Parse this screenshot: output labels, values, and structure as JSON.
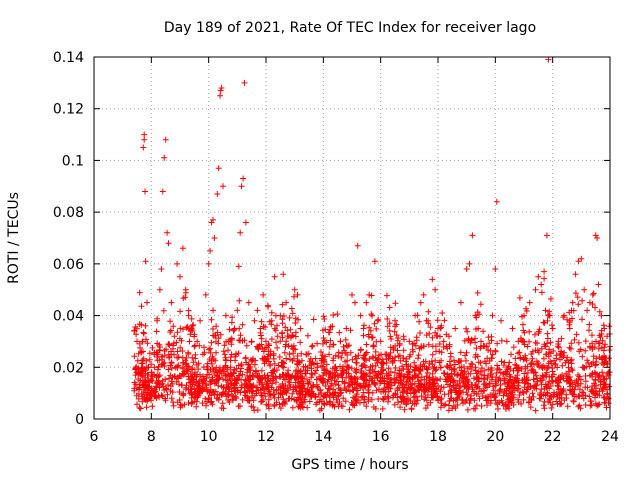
{
  "chart_data": {
    "type": "scatter",
    "title": "Day 189 of 2021, Rate Of TEC Index for receiver lago",
    "xlabel": "GPS time / hours",
    "ylabel": "ROTI / TECUs",
    "xlim": [
      6,
      24
    ],
    "ylim": [
      0,
      0.14
    ],
    "xticks": [
      6,
      8,
      10,
      12,
      14,
      16,
      18,
      20,
      22,
      24
    ],
    "yticks": [
      0,
      0.02,
      0.04,
      0.06,
      0.08,
      0.1,
      0.12,
      0.14
    ],
    "xtick_labels": [
      "6",
      "8",
      "10",
      "12",
      "14",
      "16",
      "18",
      "20",
      "22",
      "24"
    ],
    "ytick_labels": [
      "0",
      "0.02",
      "0.04",
      "0.06",
      "0.08",
      "0.1",
      "0.12",
      "0.14"
    ],
    "grid": true,
    "marker": "+",
    "series": [
      {
        "name": "ROTI",
        "color": "#ff0000",
        "points": [
          [
            7.5,
            0.012
          ],
          [
            7.6,
            0.018
          ],
          [
            7.65,
            0.026
          ],
          [
            7.7,
            0.03
          ],
          [
            7.75,
            0.11
          ],
          [
            7.75,
            0.108
          ],
          [
            7.72,
            0.105
          ],
          [
            7.78,
            0.088
          ],
          [
            7.8,
            0.061
          ],
          [
            7.85,
            0.045
          ],
          [
            7.9,
            0.02
          ],
          [
            8.0,
            0.015
          ],
          [
            8.1,
            0.025
          ],
          [
            8.2,
            0.038
          ],
          [
            8.3,
            0.05
          ],
          [
            8.35,
            0.058
          ],
          [
            8.4,
            0.088
          ],
          [
            8.45,
            0.101
          ],
          [
            8.5,
            0.108
          ],
          [
            8.55,
            0.072
          ],
          [
            8.6,
            0.068
          ],
          [
            8.7,
            0.045
          ],
          [
            8.8,
            0.032
          ],
          [
            8.9,
            0.06
          ],
          [
            9.0,
            0.055
          ],
          [
            9.1,
            0.066
          ],
          [
            9.2,
            0.05
          ],
          [
            9.3,
            0.04
          ],
          [
            9.4,
            0.035
          ],
          [
            9.5,
            0.028
          ],
          [
            9.6,
            0.03
          ],
          [
            9.7,
            0.038
          ],
          [
            9.8,
            0.025
          ],
          [
            9.9,
            0.048
          ],
          [
            10.0,
            0.06
          ],
          [
            10.05,
            0.065
          ],
          [
            10.1,
            0.076
          ],
          [
            10.15,
            0.077
          ],
          [
            10.2,
            0.07
          ],
          [
            10.3,
            0.087
          ],
          [
            10.35,
            0.097
          ],
          [
            10.4,
            0.125
          ],
          [
            10.42,
            0.127
          ],
          [
            10.45,
            0.128
          ],
          [
            10.5,
            0.09
          ],
          [
            10.6,
            0.04
          ],
          [
            10.7,
            0.03
          ],
          [
            10.8,
            0.025
          ],
          [
            10.9,
            0.035
          ],
          [
            11.0,
            0.042
          ],
          [
            11.05,
            0.059
          ],
          [
            11.1,
            0.072
          ],
          [
            11.15,
            0.09
          ],
          [
            11.2,
            0.093
          ],
          [
            11.25,
            0.13
          ],
          [
            11.3,
            0.076
          ],
          [
            11.4,
            0.045
          ],
          [
            11.5,
            0.03
          ],
          [
            11.6,
            0.038
          ],
          [
            11.7,
            0.042
          ],
          [
            11.8,
            0.035
          ],
          [
            11.9,
            0.048
          ],
          [
            12.0,
            0.03
          ],
          [
            12.1,
            0.025
          ],
          [
            12.2,
            0.038
          ],
          [
            12.3,
            0.055
          ],
          [
            12.5,
            0.04
          ],
          [
            12.6,
            0.056
          ],
          [
            12.7,
            0.045
          ],
          [
            12.8,
            0.032
          ],
          [
            12.9,
            0.028
          ],
          [
            13.0,
            0.05
          ],
          [
            13.1,
            0.048
          ],
          [
            13.2,
            0.035
          ],
          [
            13.4,
            0.025
          ],
          [
            13.6,
            0.028
          ],
          [
            13.8,
            0.02
          ],
          [
            14.0,
            0.022
          ],
          [
            14.2,
            0.025
          ],
          [
            14.4,
            0.02
          ],
          [
            14.6,
            0.03
          ],
          [
            14.8,
            0.035
          ],
          [
            15.0,
            0.048
          ],
          [
            15.1,
            0.045
          ],
          [
            15.2,
            0.067
          ],
          [
            15.3,
            0.04
          ],
          [
            15.4,
            0.035
          ],
          [
            15.5,
            0.045
          ],
          [
            15.6,
            0.048
          ],
          [
            15.7,
            0.04
          ],
          [
            15.8,
            0.061
          ],
          [
            15.9,
            0.038
          ],
          [
            16.0,
            0.03
          ],
          [
            16.2,
            0.025
          ],
          [
            16.5,
            0.038
          ],
          [
            16.8,
            0.032
          ],
          [
            17.0,
            0.03
          ],
          [
            17.2,
            0.04
          ],
          [
            17.4,
            0.045
          ],
          [
            17.5,
            0.048
          ],
          [
            17.6,
            0.038
          ],
          [
            17.8,
            0.054
          ],
          [
            17.9,
            0.05
          ],
          [
            18.0,
            0.035
          ],
          [
            18.2,
            0.03
          ],
          [
            18.4,
            0.028
          ],
          [
            18.6,
            0.035
          ],
          [
            18.8,
            0.045
          ],
          [
            19.0,
            0.058
          ],
          [
            19.1,
            0.06
          ],
          [
            19.2,
            0.071
          ],
          [
            19.3,
            0.04
          ],
          [
            19.4,
            0.035
          ],
          [
            19.5,
            0.03
          ],
          [
            19.7,
            0.028
          ],
          [
            19.9,
            0.04
          ],
          [
            20.0,
            0.058
          ],
          [
            20.05,
            0.084
          ],
          [
            20.2,
            0.038
          ],
          [
            20.4,
            0.03
          ],
          [
            20.6,
            0.035
          ],
          [
            20.8,
            0.03
          ],
          [
            21.0,
            0.04
          ],
          [
            21.2,
            0.045
          ],
          [
            21.4,
            0.05
          ],
          [
            21.5,
            0.055
          ],
          [
            21.6,
            0.052
          ],
          [
            21.7,
            0.057
          ],
          [
            21.8,
            0.071
          ],
          [
            21.85,
            0.139
          ],
          [
            21.9,
            0.04
          ],
          [
            22.0,
            0.035
          ],
          [
            22.2,
            0.03
          ],
          [
            22.4,
            0.04
          ],
          [
            22.6,
            0.038
          ],
          [
            22.7,
            0.045
          ],
          [
            22.8,
            0.056
          ],
          [
            22.9,
            0.061
          ],
          [
            23.0,
            0.062
          ],
          [
            23.1,
            0.05
          ],
          [
            23.2,
            0.042
          ],
          [
            23.3,
            0.045
          ],
          [
            23.4,
            0.048
          ],
          [
            23.5,
            0.071
          ],
          [
            23.55,
            0.07
          ],
          [
            23.6,
            0.052
          ],
          [
            23.7,
            0.04
          ],
          [
            23.8,
            0.035
          ],
          [
            23.9,
            0.032
          ],
          [
            24.0,
            0.028
          ]
        ]
      }
    ],
    "dense_band": {
      "x_start": 7.4,
      "x_end": 24.0,
      "y_min": 0.003,
      "y_typical": 0.012,
      "y_spread": 0.02
    }
  }
}
